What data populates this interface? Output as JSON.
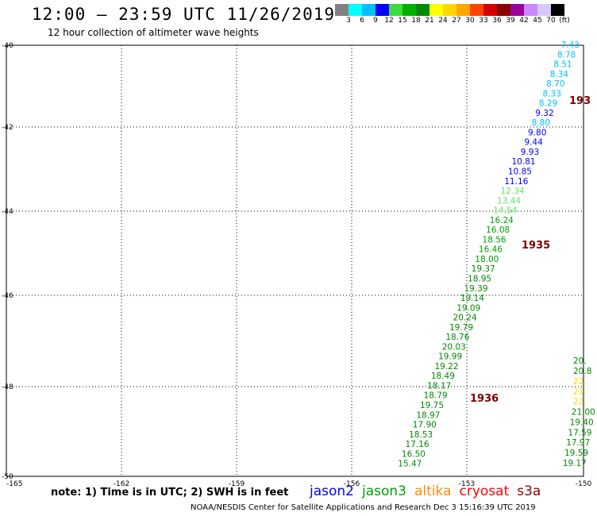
{
  "header": {
    "title": "12:00 — 23:59 UTC 11/26/2019",
    "subtitle": "12 hour collection of altimeter wave heights"
  },
  "colorbar": {
    "unit": "(ft)",
    "colors": [
      "#808080",
      "#00ffff",
      "#00bfff",
      "#0000ff",
      "#3ddb3d",
      "#00b000",
      "#008a00",
      "#ffff00",
      "#ffd700",
      "#ffa500",
      "#ff4500",
      "#d40000",
      "#8b0000",
      "#990099",
      "#cc88ff",
      "#d8c8ff",
      "#000000"
    ],
    "labels": [
      "3",
      "6",
      "9",
      "12",
      "15",
      "18",
      "21",
      "24",
      "27",
      "30",
      "33",
      "36",
      "39",
      "42",
      "45",
      "70"
    ]
  },
  "axes": {
    "x_ticks": [
      "-165",
      "-162",
      "-159",
      "-156",
      "-153",
      "-150"
    ],
    "y_ticks": [
      "-40",
      "-42",
      "-44",
      "-46",
      "-48",
      "-50"
    ]
  },
  "tracks": [
    {
      "satellite": "jason3",
      "values": [
        {
          "v": "7.43",
          "c": "#00bfff"
        },
        {
          "v": "8.78",
          "c": "#00bfff"
        },
        {
          "v": "8.51",
          "c": "#00bfff"
        },
        {
          "v": "8.34",
          "c": "#00bfff"
        },
        {
          "v": "8.70",
          "c": "#00bfff"
        },
        {
          "v": "8.33",
          "c": "#00bfff"
        },
        {
          "v": "8.29",
          "c": "#00bfff"
        },
        {
          "v": "9.32",
          "c": "#0000ff"
        },
        {
          "v": "8.80",
          "c": "#00bfff"
        },
        {
          "v": "9.80",
          "c": "#0000ff"
        },
        {
          "v": "9.44",
          "c": "#0000ff"
        },
        {
          "v": "9.93",
          "c": "#0000ff"
        },
        {
          "v": "10.81",
          "c": "#0000ff"
        },
        {
          "v": "10.85",
          "c": "#0000ff"
        },
        {
          "v": "11.16",
          "c": "#0000ff"
        },
        {
          "v": "12.34",
          "c": "#66e066"
        },
        {
          "v": "13.44",
          "c": "#66e066"
        },
        {
          "v": "14.54",
          "c": "#66e066"
        },
        {
          "v": "16.24",
          "c": "#00a000"
        },
        {
          "v": "16.08",
          "c": "#00a000"
        },
        {
          "v": "18.56",
          "c": "#00a000"
        },
        {
          "v": "16.46",
          "c": "#00a000"
        },
        {
          "v": "18.00",
          "c": "#00a000"
        },
        {
          "v": "19.37",
          "c": "#008a00"
        },
        {
          "v": "18.95",
          "c": "#008a00"
        },
        {
          "v": "19.39",
          "c": "#008a00"
        },
        {
          "v": "19.14",
          "c": "#008a00"
        },
        {
          "v": "19.09",
          "c": "#008a00"
        },
        {
          "v": "20.24",
          "c": "#008a00"
        },
        {
          "v": "19.79",
          "c": "#008a00"
        },
        {
          "v": "18.76",
          "c": "#008a00"
        },
        {
          "v": "20.03",
          "c": "#008a00"
        },
        {
          "v": "19.99",
          "c": "#008a00"
        },
        {
          "v": "19.22",
          "c": "#008a00"
        },
        {
          "v": "18.49",
          "c": "#008a00"
        },
        {
          "v": "18.17",
          "c": "#008a00"
        },
        {
          "v": "18.79",
          "c": "#008a00"
        },
        {
          "v": "19.75",
          "c": "#008a00"
        },
        {
          "v": "18.97",
          "c": "#008a00"
        },
        {
          "v": "17.90",
          "c": "#008a00"
        },
        {
          "v": "18.53",
          "c": "#008a00"
        },
        {
          "v": "17.16",
          "c": "#008a00"
        },
        {
          "v": "16.50",
          "c": "#008a00"
        },
        {
          "v": "15.47",
          "c": "#008a00"
        }
      ]
    },
    {
      "satellite": "right-edge",
      "values": [
        {
          "v": "20.",
          "c": "#008a00"
        },
        {
          "v": "20.8",
          "c": "#008a00"
        },
        {
          "v": "22.",
          "c": "#ffd700"
        },
        {
          "v": "21.",
          "c": "#ffd700"
        },
        {
          "v": "22.",
          "c": "#ffd700"
        },
        {
          "v": "21.00",
          "c": "#008a00"
        },
        {
          "v": "19.40",
          "c": "#008a00"
        },
        {
          "v": "17.59",
          "c": "#008a00"
        },
        {
          "v": "17.97",
          "c": "#008a00"
        },
        {
          "v": "19.59",
          "c": "#008a00"
        },
        {
          "v": "19.17",
          "c": "#008a00"
        }
      ]
    }
  ],
  "time_labels": [
    "193",
    "1935",
    "1936"
  ],
  "footer": {
    "note": "note:  1) Time is in UTC;  2) SWH is in feet",
    "legend": [
      {
        "name": "jason2",
        "color": "#0000ff"
      },
      {
        "name": "jason3",
        "color": "#00a000"
      },
      {
        "name": "altika",
        "color": "#ff8c00"
      },
      {
        "name": "cryosat",
        "color": "#ff0000"
      },
      {
        "name": "s3a",
        "color": "#8b0000"
      }
    ],
    "credit": "NOAA/NESDIS Center for Satellite Applications and Research     Dec  3 15:16:39 UTC 2019"
  }
}
